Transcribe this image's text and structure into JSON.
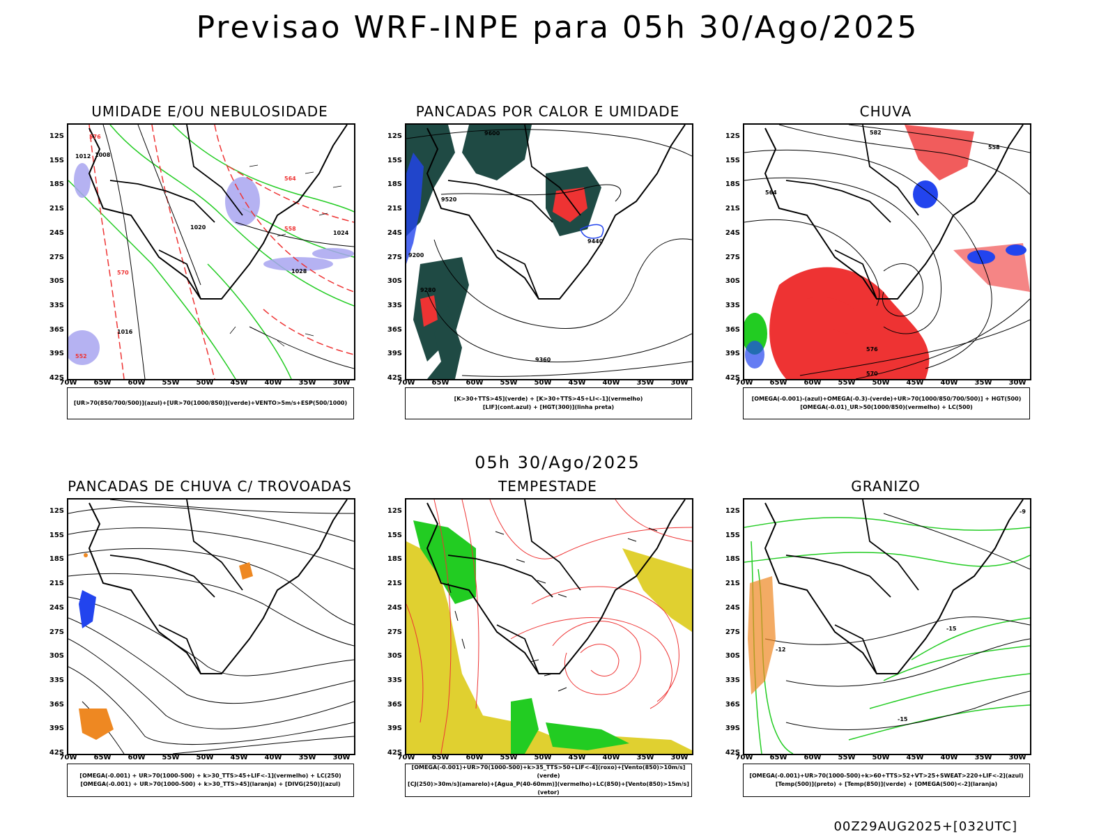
{
  "title": "Previsao WRF-INPE  para 05h 30/Ago/2025",
  "subtitle": "05h 30/Ago/2025",
  "footer": "00Z29AUG2025+[032UTC]",
  "axis": {
    "y_labels": [
      "12S",
      "15S",
      "18S",
      "21S",
      "24S",
      "27S",
      "30S",
      "33S",
      "36S",
      "39S",
      "42S"
    ],
    "x_labels": [
      "70W",
      "65W",
      "60W",
      "55W",
      "50W",
      "45W",
      "40W",
      "35W",
      "30W"
    ]
  },
  "colors": {
    "green": "#22cc22",
    "red": "#ee3333",
    "blue": "#2244ee",
    "lavender": "#a8a4f0",
    "darkgreen": "#1f4a44",
    "orange": "#ee8822",
    "yellow": "#e0d030",
    "black": "#000000"
  },
  "panels": [
    {
      "title": "UMIDADE E/OU NEBULOSIDADE",
      "legend": [
        "[UR>70(850/700/500)](azul)+[UR>70(1000/850)](verde)+VENTO>5m/s+ESP(500/1000)"
      ],
      "labels": [
        "1012",
        "1008",
        "1016",
        "1020",
        "1024",
        "1028",
        "576",
        "570",
        "564",
        "558",
        "552"
      ]
    },
    {
      "title": "PANCADAS POR CALOR E UMIDADE",
      "legend": [
        "[K>30+TTS>45](verde) + [K>30+TTS>45+LI<-1](vermelho)",
        "[LIF](cont.azul) + [HGT(300)](linha preta)"
      ],
      "labels": [
        "9600",
        "9520",
        "9440",
        "9360",
        "9280",
        "9200"
      ]
    },
    {
      "title": "CHUVA",
      "legend": [
        "[OMEGA(-0.001)-(azul)+OMEGA(-0.3)-(verde)+UR>70(1000/850/700/500)] + HGT(500)",
        "[OMEGA(-0.01)_UR>50(1000/850)(vermelho) + LC(500)"
      ],
      "labels": [
        "582",
        "576",
        "570",
        "564",
        "558"
      ]
    },
    {
      "title": "PANCADAS DE CHUVA C/ TROVOADAS",
      "legend": [
        "[OMEGA(-0.001) + UR>70(1000-500) + k>30_TTS>45+LIF<-1](vermelho) + LC(250)",
        "[OMEGA(-0.001) + UR>70(1000-500) + k>30_TTS>45](laranja) + [DIVG(250)](azul)"
      ],
      "labels": []
    },
    {
      "title": "TEMPESTADE",
      "legend": [
        "[OMEGA(-0.001)+UR>70(1000-500)+k>35_TTS>50+LIF<-4](roxo)+[Vento(850)>10m/s](verde)",
        "[CJ(250)>30m/s](amarelo)+[Agua_P(40-60mm)](vermelho)+LC(850)+[Vento(850)>15m/s](vetor)"
      ],
      "labels": []
    },
    {
      "title": "GRANIZO",
      "legend": [
        "[OMEGA(-0.001)+UR>70(1000-500)+k>60+TTS>52+VT>25+SWEAT>220+LIF<-2](azul)",
        "[Temp(500)](preto) + [Temp(850)](verde) + [OMEGA(500)<-2](laranja)"
      ],
      "labels": [
        "-12",
        "-15",
        "-9"
      ]
    }
  ]
}
